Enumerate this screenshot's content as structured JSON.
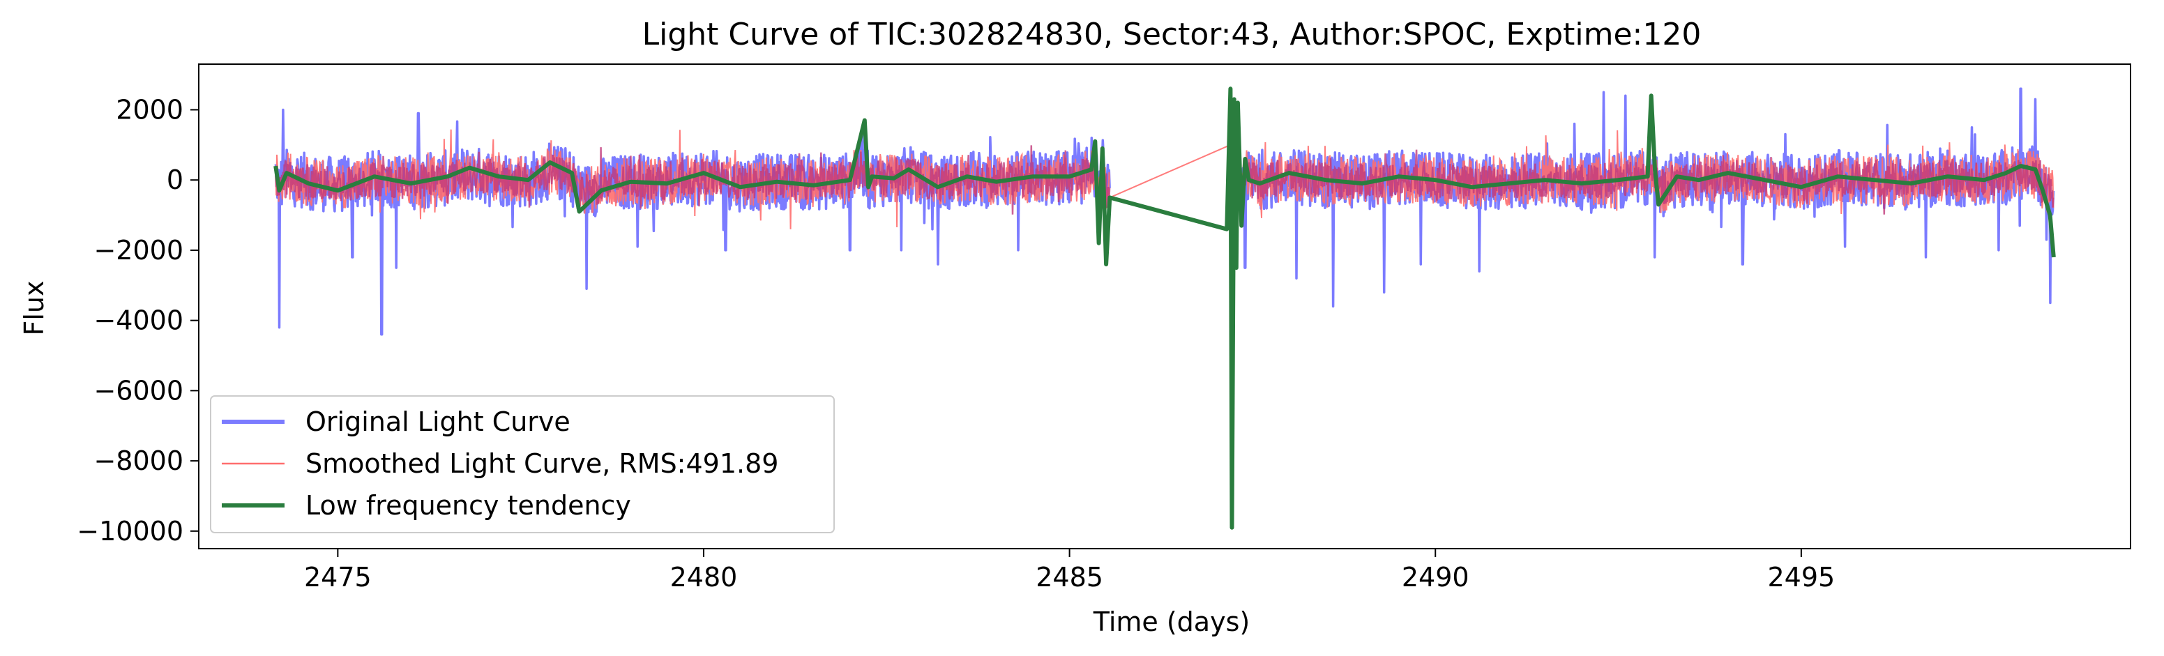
{
  "chart_data": {
    "type": "line",
    "title": "Light Curve of TIC:302824830, Sector:43, Author:SPOC, Exptime:120",
    "xlabel": "Time (days)",
    "ylabel": "Flux",
    "xlim": [
      2473.1,
      2499.5
    ],
    "ylim": [
      -10500,
      3300
    ],
    "xticks": [
      2475,
      2480,
      2485,
      2490,
      2495
    ],
    "xtick_labels": [
      "2475",
      "2480",
      "2485",
      "2490",
      "2495"
    ],
    "yticks": [
      2000,
      0,
      -2000,
      -4000,
      -6000,
      -8000,
      -10000
    ],
    "ytick_labels": [
      "2000",
      "0",
      "−2000",
      "−4000",
      "−6000",
      "−8000",
      "−10000"
    ],
    "grid": false,
    "legend_position": "lower left",
    "segments": [
      [
        2474.15,
        2485.55
      ],
      [
        2487.2,
        2498.45
      ]
    ],
    "series": [
      {
        "name": "Original Light Curve",
        "color": "#7b7bff",
        "noise_amplitude": 800,
        "spikes": [
          {
            "x": 2474.2,
            "y": -4200
          },
          {
            "x": 2474.25,
            "y": 2000
          },
          {
            "x": 2475.2,
            "y": -2200
          },
          {
            "x": 2475.6,
            "y": -4400
          },
          {
            "x": 2475.8,
            "y": -2500
          },
          {
            "x": 2476.1,
            "y": 1900
          },
          {
            "x": 2478.4,
            "y": -3100
          },
          {
            "x": 2479.1,
            "y": -1900
          },
          {
            "x": 2480.3,
            "y": -2000
          },
          {
            "x": 2482.0,
            "y": -2000
          },
          {
            "x": 2482.7,
            "y": -2000
          },
          {
            "x": 2483.2,
            "y": -2400
          },
          {
            "x": 2484.3,
            "y": -2000
          },
          {
            "x": 2485.3,
            "y": 1200
          },
          {
            "x": 2487.4,
            "y": -2500
          },
          {
            "x": 2488.1,
            "y": -2800
          },
          {
            "x": 2488.6,
            "y": -3600
          },
          {
            "x": 2489.3,
            "y": -3200
          },
          {
            "x": 2489.8,
            "y": -2400
          },
          {
            "x": 2490.6,
            "y": -2600
          },
          {
            "x": 2491.9,
            "y": 1600
          },
          {
            "x": 2492.3,
            "y": 2500
          },
          {
            "x": 2492.6,
            "y": 2400
          },
          {
            "x": 2493.0,
            "y": -2200
          },
          {
            "x": 2494.2,
            "y": -2400
          },
          {
            "x": 2495.6,
            "y": -1900
          },
          {
            "x": 2496.7,
            "y": -2200
          },
          {
            "x": 2497.7,
            "y": -2000
          },
          {
            "x": 2498.0,
            "y": 2600
          },
          {
            "x": 2498.2,
            "y": 2300
          },
          {
            "x": 2498.35,
            "y": -1700
          },
          {
            "x": 2498.4,
            "y": -3500
          }
        ]
      },
      {
        "name": "Smoothed Light Curve, RMS:491.89",
        "color": "#ff6e6e",
        "noise_amplitude": 700
      },
      {
        "name": "Low frequency tendency",
        "color": "#2a7d3e",
        "x": [
          2474.15,
          2474.2,
          2474.3,
          2474.6,
          2475.0,
          2475.5,
          2476.0,
          2476.5,
          2476.8,
          2477.2,
          2477.6,
          2477.9,
          2478.2,
          2478.3,
          2478.6,
          2479.0,
          2479.5,
          2480.0,
          2480.5,
          2481.0,
          2481.5,
          2482.0,
          2482.2,
          2482.25,
          2482.3,
          2482.6,
          2482.8,
          2483.2,
          2483.6,
          2484.0,
          2484.5,
          2485.0,
          2485.3,
          2485.35,
          2485.4,
          2485.45,
          2485.5,
          2485.55,
          2487.15,
          2487.2,
          2487.22,
          2487.25,
          2487.28,
          2487.3,
          2487.35,
          2487.4,
          2487.45,
          2487.6,
          2488.0,
          2488.5,
          2489.0,
          2489.5,
          2490.0,
          2490.5,
          2491.0,
          2491.5,
          2492.0,
          2492.5,
          2492.9,
          2492.95,
          2493.0,
          2493.05,
          2493.3,
          2493.6,
          2494.0,
          2494.5,
          2495.0,
          2495.5,
          2496.0,
          2496.5,
          2497.0,
          2497.5,
          2497.8,
          2498.0,
          2498.2,
          2498.3,
          2498.4,
          2498.45
        ],
        "y": [
          400,
          -300,
          200,
          -100,
          -300,
          100,
          -100,
          100,
          350,
          100,
          0,
          500,
          200,
          -900,
          -300,
          -50,
          -100,
          200,
          -200,
          -50,
          -150,
          0,
          1700,
          -200,
          100,
          50,
          300,
          -200,
          100,
          -50,
          100,
          100,
          300,
          1100,
          -1800,
          900,
          -2400,
          -500,
          -1400,
          2600,
          -9900,
          2300,
          -2500,
          2200,
          -1300,
          600,
          0,
          -100,
          200,
          0,
          -100,
          100,
          0,
          -200,
          -100,
          0,
          -100,
          0,
          100,
          2400,
          300,
          -700,
          100,
          0,
          200,
          0,
          -200,
          100,
          0,
          -100,
          100,
          0,
          200,
          400,
          300,
          -300,
          -1000,
          -2200
        ]
      }
    ]
  }
}
